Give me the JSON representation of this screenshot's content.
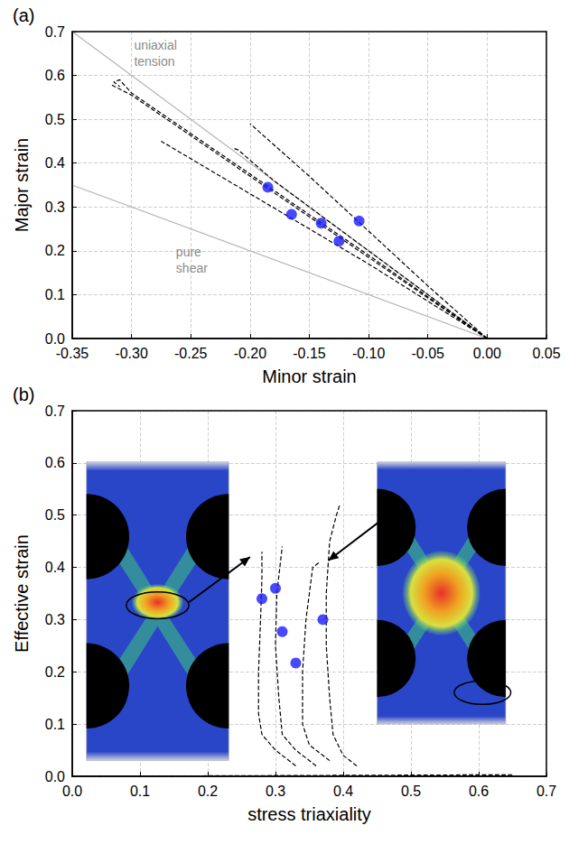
{
  "chart_data": [
    {
      "type": "line",
      "title": "(a)",
      "x_label": "Minor strain",
      "y_label": "Major strain",
      "xlim": [
        -0.35,
        0.05
      ],
      "xticks": [
        -0.35,
        {
          "value": -0.3,
          "label": "-0.30"
        },
        -0.25,
        {
          "value": -0.2,
          "label": "-0.20"
        },
        -0.15,
        {
          "value": -0.1,
          "label": "-0.10"
        },
        -0.05,
        {
          "value": 0,
          "label": "0.00"
        },
        0.05
      ],
      "ylim": [
        0,
        0.7
      ],
      "yticks": [
        {
          "value": 0,
          "label": "0.0"
        },
        0.1,
        0.2,
        0.3,
        0.4,
        0.5,
        0.6,
        0.7
      ],
      "grid": true,
      "series": [
        {
          "name": "uniaxial tension",
          "type": "line",
          "line_style": "solid",
          "color": "#b4b4b4",
          "x": [
            0,
            -0.35
          ],
          "values": [
            0,
            0.7
          ]
        },
        {
          "name": "pure shear",
          "type": "line",
          "line_style": "solid",
          "color": "#b4b4b4",
          "x": [
            0,
            -0.35
          ],
          "values": [
            0,
            0.35
          ]
        },
        {
          "type": "line",
          "line_style": "dashed",
          "color": "#000000",
          "x": [
            0,
            -0.1,
            -0.2,
            -0.3,
            -0.31,
            -0.315,
            -0.31
          ],
          "values": [
            0,
            0.19,
            0.375,
            0.56,
            0.59,
            0.585,
            0.575
          ]
        },
        {
          "type": "line",
          "line_style": "dashed",
          "color": "#000000",
          "x": [
            0,
            -0.1,
            -0.2,
            -0.3,
            -0.318
          ],
          "values": [
            0,
            0.185,
            0.37,
            0.555,
            0.58
          ]
        },
        {
          "type": "line",
          "line_style": "dashed",
          "color": "#000000",
          "x": [
            0,
            -0.1,
            -0.2,
            -0.275
          ],
          "values": [
            0,
            0.17,
            0.33,
            0.45
          ]
        },
        {
          "type": "line",
          "line_style": "dashed",
          "color": "#000000",
          "x": [
            0,
            -0.05,
            -0.1,
            -0.15,
            -0.2
          ],
          "values": [
            0,
            0.12,
            0.245,
            0.37,
            0.49
          ]
        },
        {
          "type": "line",
          "line_style": "dashed",
          "color": "#000000",
          "x": [
            0,
            -0.1,
            -0.18,
            -0.21,
            -0.215
          ],
          "values": [
            0,
            0.2,
            0.36,
            0.43,
            0.435
          ]
        },
        {
          "type": "scatter",
          "marker": "circle",
          "color": "#1a1aff",
          "x": [
            -0.185,
            -0.165,
            -0.14,
            -0.125,
            -0.108
          ],
          "values": [
            0.345,
            0.283,
            0.263,
            0.222,
            0.268
          ]
        }
      ]
    },
    {
      "type": "line",
      "title": "(b)",
      "x_label": "stress triaxiality",
      "y_label": "Effective strain",
      "xlim": [
        0,
        0.7
      ],
      "xticks": [
        {
          "value": 0,
          "label": "0.0"
        },
        0.1,
        0.2,
        0.3,
        0.4,
        0.5,
        0.6,
        0.7
      ],
      "ylim": [
        0,
        0.7
      ],
      "yticks": [
        {
          "value": 0,
          "label": "0.0"
        },
        0.1,
        0.2,
        0.3,
        0.4,
        0.5,
        0.6,
        0.7
      ],
      "grid": true,
      "series": [
        {
          "type": "line",
          "line_style": "dashed",
          "color": "#000000",
          "x": [
            0,
            0.65
          ],
          "values": [
            0,
            0.003
          ]
        },
        {
          "type": "line",
          "line_style": "dashed",
          "color": "#000000",
          "x": [
            0.33,
            0.3,
            0.28,
            0.275,
            0.275,
            0.278,
            0.28,
            0.28
          ],
          "values": [
            0.02,
            0.05,
            0.08,
            0.12,
            0.2,
            0.3,
            0.38,
            0.43
          ]
        },
        {
          "type": "line",
          "line_style": "dashed",
          "color": "#000000",
          "x": [
            0.36,
            0.33,
            0.31,
            0.305,
            0.3,
            0.302,
            0.31
          ],
          "values": [
            0.02,
            0.05,
            0.08,
            0.15,
            0.25,
            0.35,
            0.44
          ]
        },
        {
          "type": "line",
          "line_style": "dashed",
          "color": "#000000",
          "x": [
            0.38,
            0.35,
            0.34,
            0.34,
            0.345,
            0.35,
            0.355,
            0.365
          ],
          "values": [
            0.03,
            0.06,
            0.1,
            0.2,
            0.3,
            0.35,
            0.4,
            0.41
          ]
        },
        {
          "type": "line",
          "line_style": "dashed",
          "color": "#000000",
          "x": [
            0.42,
            0.4,
            0.385,
            0.38,
            0.375,
            0.375,
            0.38,
            0.39,
            0.395
          ],
          "values": [
            0.02,
            0.04,
            0.08,
            0.15,
            0.25,
            0.35,
            0.45,
            0.5,
            0.52
          ]
        },
        {
          "type": "scatter",
          "marker": "circle",
          "color": "#1a1aff",
          "x": [
            0.28,
            0.3,
            0.31,
            0.33,
            0.37
          ],
          "values": [
            0.34,
            0.36,
            0.277,
            0.217,
            0.3
          ]
        }
      ]
    }
  ]
}
